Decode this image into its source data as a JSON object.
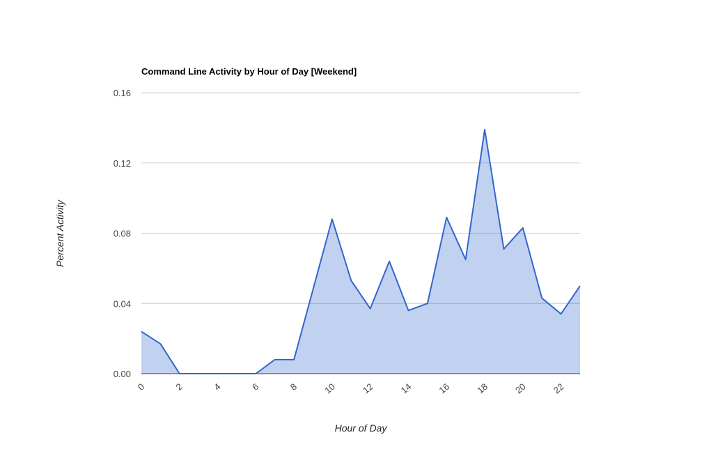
{
  "chart_data": {
    "type": "area",
    "title": "Command Line Activity by Hour of Day [Weekend]",
    "x_label": "Hour of Day",
    "y_label": "Percent Activity",
    "x": [
      0,
      1,
      2,
      3,
      4,
      5,
      6,
      7,
      8,
      9,
      10,
      11,
      12,
      13,
      14,
      15,
      16,
      17,
      18,
      19,
      20,
      21,
      22,
      23
    ],
    "series": [
      {
        "name": "Percent Activity",
        "color": "#3366cc",
        "values": [
          0.024,
          0.017,
          0,
          0,
          0,
          0,
          0,
          0.008,
          0.008,
          0.048,
          0.088,
          0.053,
          0.037,
          0.064,
          0.036,
          0.04,
          0.089,
          0.065,
          0.139,
          0.071,
          0.083,
          0.043,
          0.034,
          0.05
        ]
      }
    ],
    "xlim": [
      0,
      23
    ],
    "xticks": [
      0,
      2,
      4,
      6,
      8,
      10,
      12,
      14,
      16,
      18,
      20,
      22
    ],
    "ylim": [
      0,
      0.16
    ],
    "yticks": [
      {
        "value": 0,
        "label": "0.00"
      },
      0.04,
      0.08,
      0.12,
      0.16
    ],
    "grid": true
  }
}
